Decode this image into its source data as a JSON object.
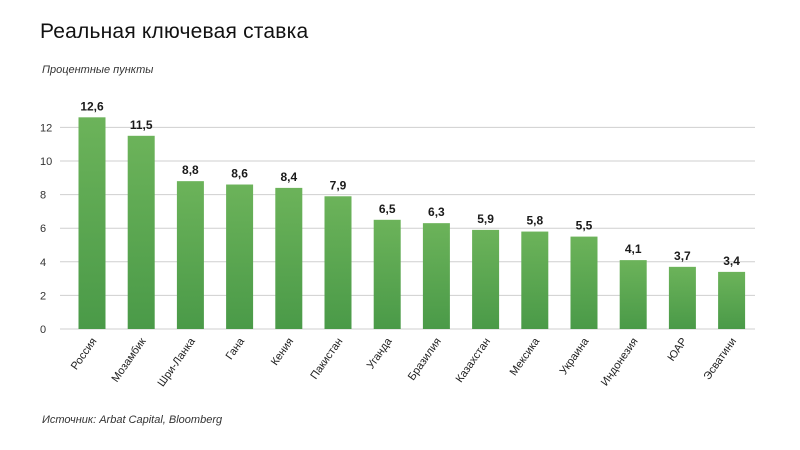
{
  "header": {
    "title": "Реальная ключевая ставка",
    "subtitle": "Процентные пункты"
  },
  "footer": {
    "source": "Источник: Arbat Capital, Bloomberg"
  },
  "colors": {
    "bar_top": "#6cb35a",
    "bar_bottom": "#4a9a48",
    "grid": "#cfcfcf"
  },
  "chart_data": {
    "type": "bar",
    "title": "Реальная ключевая ставка",
    "subtitle": "Процентные пункты",
    "categories": [
      "Россия",
      "Мозамбик",
      "Шри-Ланка",
      "Гана",
      "Кения",
      "Пакистан",
      "Уганда",
      "Бразилия",
      "Казахстан",
      "Мексика",
      "Украина",
      "Индонезия",
      "ЮАР",
      "Эсватини"
    ],
    "values": [
      12.6,
      11.5,
      8.8,
      8.6,
      8.4,
      7.9,
      6.5,
      6.3,
      5.9,
      5.8,
      5.5,
      4.1,
      3.7,
      3.4
    ],
    "value_labels": [
      "12,6",
      "11,5",
      "8,8",
      "8,6",
      "8,4",
      "7,9",
      "6,5",
      "6,3",
      "5,9",
      "5,8",
      "5,5",
      "4,1",
      "3,7",
      "3,4"
    ],
    "yticks": [
      0,
      2,
      4,
      6,
      8,
      10,
      12
    ],
    "ylim": [
      0,
      12.6
    ],
    "grid": true,
    "legend": "none"
  }
}
